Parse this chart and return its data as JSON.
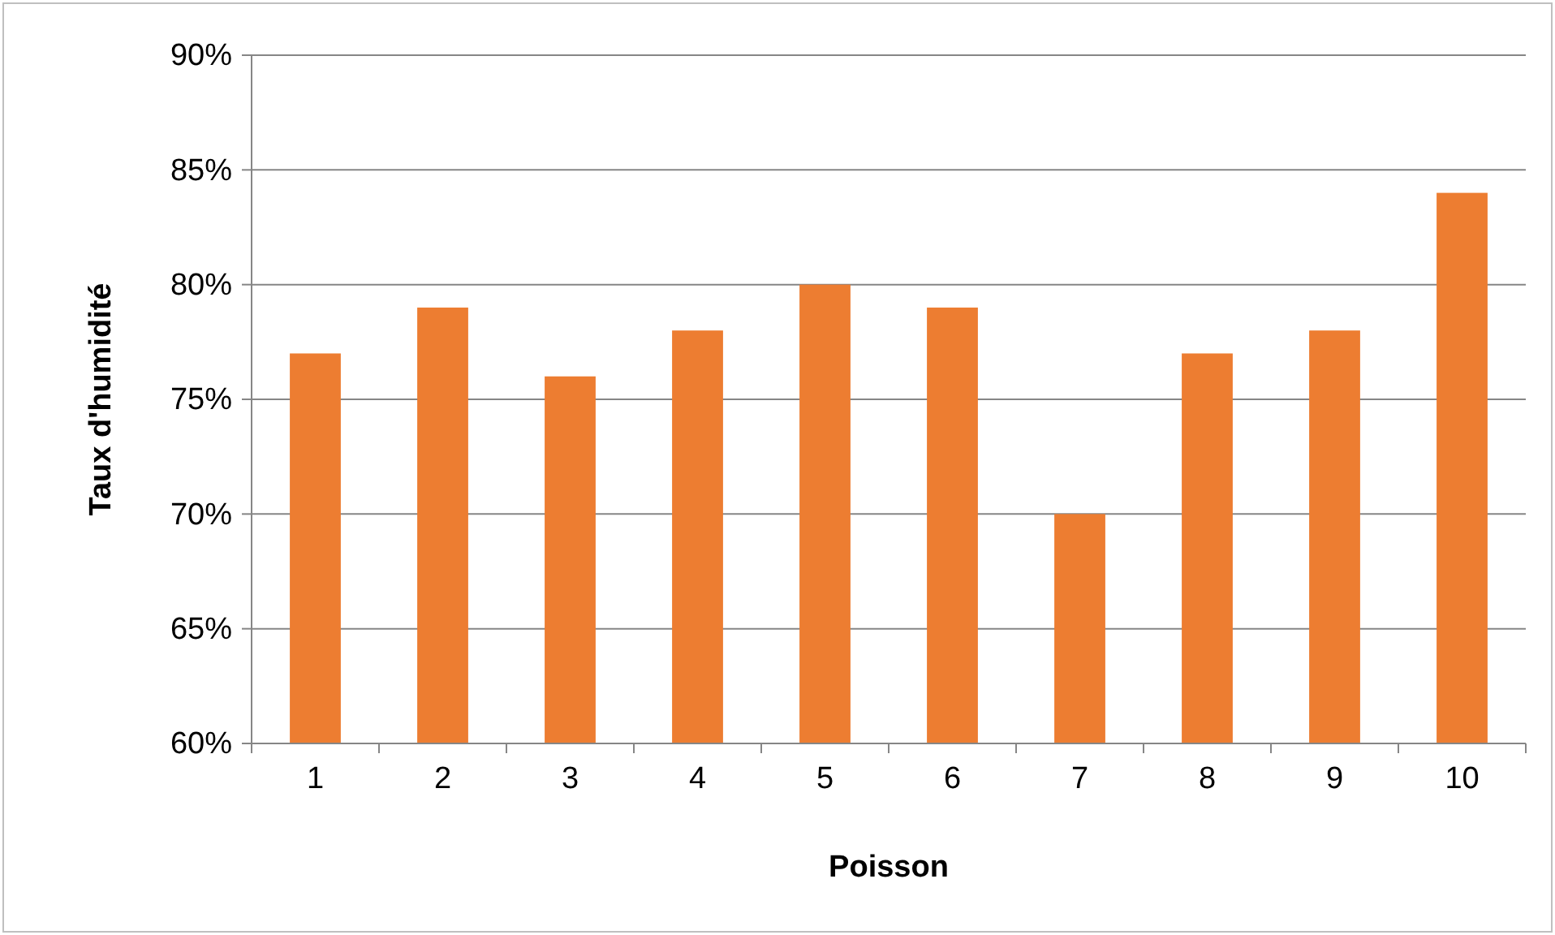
{
  "chart_data": {
    "type": "bar",
    "xlabel": "Poisson",
    "ylabel": "Taux d'humidité",
    "categories": [
      "1",
      "2",
      "3",
      "4",
      "5",
      "6",
      "7",
      "8",
      "9",
      "10"
    ],
    "values": [
      77,
      79,
      76,
      78,
      80,
      79,
      70,
      77,
      78,
      84
    ],
    "color": "#ed7d31",
    "ylim": [
      60,
      90
    ],
    "yticks": [
      {
        "value": 60,
        "label": "60%"
      },
      {
        "value": 65,
        "label": "65%"
      },
      {
        "value": 70,
        "label": "70%"
      },
      {
        "value": 75,
        "label": "75%"
      },
      {
        "value": 80,
        "label": "80%"
      },
      {
        "value": 85,
        "label": "85%"
      },
      {
        "value": 90,
        "label": "90%"
      }
    ],
    "grid": "y"
  }
}
